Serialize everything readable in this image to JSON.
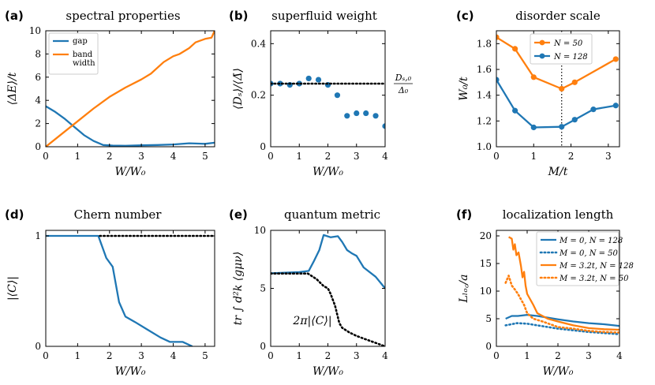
{
  "colors": {
    "blue": "#1f77b4",
    "orange": "#ff7f0e",
    "black": "#000000"
  },
  "chart_data": [
    {
      "type": "line",
      "panel_label": "(a)",
      "title": "spectral properties",
      "xlabel": "W/W₀",
      "ylabel": "⟨ΔE⟩/t",
      "xlim": [
        0,
        5.3
      ],
      "ylim": [
        0,
        10
      ],
      "xticks": [
        0,
        1,
        2,
        3,
        4,
        5
      ],
      "xticklabels": [
        "0",
        "1",
        "2",
        "3",
        "4",
        "5"
      ],
      "yticks": [
        0,
        2,
        4,
        6,
        8,
        10
      ],
      "yticklabels": [
        "0",
        "2",
        "4",
        "6",
        "8",
        "10"
      ],
      "legend": {
        "loc": "upper-left",
        "entries": [
          [
            "gap"
          ],
          [
            "band",
            "width"
          ]
        ]
      },
      "series": [
        {
          "name": "gap",
          "color": "#1f77b4",
          "style": "solid",
          "x": [
            0,
            0.3,
            0.6,
            0.9,
            1.2,
            1.5,
            1.8,
            2.1,
            2.5,
            3,
            3.5,
            4,
            4.5,
            5,
            5.3
          ],
          "y": [
            3.5,
            3.0,
            2.4,
            1.7,
            1.0,
            0.5,
            0.15,
            0.1,
            0.08,
            0.12,
            0.15,
            0.2,
            0.3,
            0.25,
            0.35
          ]
        },
        {
          "name": "band width",
          "color": "#ff7f0e",
          "style": "solid",
          "x": [
            0,
            0.5,
            1,
            1.5,
            2,
            2.5,
            3,
            3.3,
            3.7,
            4,
            4.2,
            4.5,
            4.7,
            5,
            5.2,
            5.3
          ],
          "y": [
            0,
            1.1,
            2.2,
            3.3,
            4.3,
            5.1,
            5.8,
            6.3,
            7.3,
            7.8,
            8.0,
            8.5,
            9.0,
            9.3,
            9.4,
            10
          ]
        }
      ]
    },
    {
      "type": "scatter",
      "panel_label": "(b)",
      "title": "superfluid weight",
      "xlabel": "W/W₀",
      "ylabel": "⟨Dₛ⟩/⟨Δ̄⟩",
      "xlim": [
        0,
        4
      ],
      "ylim": [
        0,
        0.45
      ],
      "xticks": [
        0,
        1,
        2,
        3,
        4
      ],
      "xticklabels": [
        "0",
        "1",
        "2",
        "3",
        "4"
      ],
      "yticks": [
        0,
        0.2,
        0.4
      ],
      "yticklabels": [
        "0",
        "0.2",
        "0.4"
      ],
      "annotation": {
        "text": "Dₛ,₀/Δ₀",
        "numerator": "Dₛ,₀",
        "denominator": "Δ₀"
      },
      "series": [
        {
          "name": "points",
          "color": "#1f77b4",
          "style": "marker",
          "x": [
            0,
            0.33,
            0.67,
            1,
            1.33,
            1.67,
            2,
            2.33,
            2.67,
            3,
            3.33,
            3.67,
            4
          ],
          "y": [
            0.245,
            0.245,
            0.24,
            0.245,
            0.265,
            0.26,
            0.24,
            0.2,
            0.12,
            0.13,
            0.13,
            0.12,
            0.08
          ]
        },
        {
          "name": "reference",
          "color": "#000000",
          "style": "dotted",
          "x": [
            0,
            4
          ],
          "y": [
            0.245,
            0.245
          ]
        }
      ]
    },
    {
      "type": "line",
      "panel_label": "(c)",
      "title": "disorder scale",
      "xlabel": "M/t",
      "ylabel": "W₀/t",
      "xlim": [
        0,
        3.3
      ],
      "ylim": [
        1.0,
        1.9
      ],
      "xticks": [
        0,
        1,
        2,
        3
      ],
      "xticklabels": [
        "0",
        "1",
        "2",
        "3"
      ],
      "yticks": [
        1.0,
        1.2,
        1.4,
        1.6,
        1.8
      ],
      "yticklabels": [
        "1.0",
        "1.2",
        "1.4",
        "1.6",
        "1.8"
      ],
      "vline": {
        "x": 1.75,
        "style": "dotted"
      },
      "legend": {
        "loc": "upper-center",
        "entries": [
          [
            "N = 50"
          ],
          [
            "N = 128"
          ]
        ]
      },
      "series": [
        {
          "name": "N = 50",
          "color": "#ff7f0e",
          "style": "solid-marker",
          "x": [
            0,
            0.5,
            1,
            1.75,
            2.1,
            3.2
          ],
          "y": [
            1.85,
            1.76,
            1.54,
            1.45,
            1.5,
            1.68
          ]
        },
        {
          "name": "N = 128",
          "color": "#1f77b4",
          "style": "solid-marker",
          "x": [
            0,
            0.5,
            1,
            1.75,
            2.1,
            2.6,
            3.2
          ],
          "y": [
            1.52,
            1.28,
            1.15,
            1.155,
            1.21,
            1.29,
            1.32
          ]
        }
      ]
    },
    {
      "type": "line",
      "panel_label": "(d)",
      "title": "Chern number",
      "xlabel": "W/W₀",
      "ylabel": "|⟨C⟩|",
      "xlim": [
        0,
        5.3
      ],
      "ylim": [
        0,
        1.05
      ],
      "xticks": [
        0,
        1,
        2,
        3,
        4,
        5
      ],
      "xticklabels": [
        "0",
        "1",
        "2",
        "3",
        "4",
        "5"
      ],
      "yticks": [
        0,
        1
      ],
      "yticklabels": [
        "0",
        "1"
      ],
      "series": [
        {
          "name": "|<C>|",
          "color": "#1f77b4",
          "style": "solid",
          "x": [
            0,
            1.5,
            1.65,
            1.9,
            2.1,
            2.3,
            2.5,
            2.8,
            3.2,
            3.6,
            3.9,
            4.3,
            4.6
          ],
          "y": [
            1,
            1,
            1,
            0.8,
            0.72,
            0.4,
            0.27,
            0.22,
            0.15,
            0.08,
            0.04,
            0.04,
            0
          ]
        },
        {
          "name": "reference",
          "color": "#000000",
          "style": "dotted",
          "x": [
            1.7,
            5.3
          ],
          "y": [
            1,
            1
          ]
        }
      ]
    },
    {
      "type": "line",
      "panel_label": "(e)",
      "title": "quantum metric",
      "xlabel": "W/W₀",
      "ylabel": "tr ∫ d²k ⟨gμν⟩",
      "xlim": [
        0,
        4
      ],
      "ylim": [
        0,
        10
      ],
      "xticks": [
        0,
        1,
        2,
        3,
        4
      ],
      "xticklabels": [
        "0",
        "1",
        "2",
        "3",
        "4"
      ],
      "yticks": [
        0,
        5,
        10
      ],
      "yticklabels": [
        "0",
        "5",
        "10"
      ],
      "annotation": {
        "text": "2π|⟨C⟩|"
      },
      "series": [
        {
          "name": "trace metric",
          "color": "#1f77b4",
          "style": "solid",
          "x": [
            0,
            1,
            1.33,
            1.5,
            1.7,
            1.85,
            2.1,
            2.35,
            2.5,
            2.67,
            2.85,
            3,
            3.25,
            3.67,
            4
          ],
          "y": [
            6.3,
            6.4,
            6.5,
            7.3,
            8.3,
            9.6,
            9.4,
            9.5,
            9.0,
            8.3,
            8.0,
            7.8,
            6.8,
            6.0,
            5.0
          ]
        },
        {
          "name": "2π|<C>|",
          "color": "#000000",
          "style": "dotted",
          "x": [
            0,
            1.3,
            1.6,
            1.85,
            2,
            2.1,
            2.25,
            2.4,
            2.5,
            2.75,
            3,
            3.33,
            3.67,
            4
          ],
          "y": [
            6.28,
            6.28,
            5.8,
            5.2,
            5.0,
            4.5,
            3.5,
            2.0,
            1.6,
            1.2,
            0.9,
            0.6,
            0.3,
            0
          ]
        }
      ]
    },
    {
      "type": "line",
      "panel_label": "(f)",
      "title": "localization length",
      "xlabel": "W/W₀",
      "ylabel": "Lₗₒ꜀/a",
      "ylabel_text": "L_loc/a",
      "xlim": [
        0,
        4
      ],
      "ylim": [
        0,
        21
      ],
      "xticks": [
        0,
        1,
        2,
        3,
        4
      ],
      "xticklabels": [
        "0",
        "1",
        "2",
        "3",
        "4"
      ],
      "yticks": [
        0,
        5,
        10,
        15,
        20
      ],
      "yticklabels": [
        "0",
        "5",
        "10",
        "15",
        "20"
      ],
      "legend": {
        "loc": "upper-right",
        "entries": [
          [
            "M = 0, N = 128"
          ],
          [
            "M = 0, N = 50"
          ],
          [
            "M = 3.2t, N = 128"
          ],
          [
            "M = 3.2t, N = 50"
          ]
        ]
      },
      "series": [
        {
          "name": "M = 0, N = 128",
          "color": "#1f77b4",
          "style": "solid",
          "x": [
            0.3,
            0.5,
            0.7,
            1,
            1.33,
            1.67,
            2,
            2.5,
            3,
            3.5,
            4
          ],
          "y": [
            5.0,
            5.5,
            5.5,
            5.7,
            5.5,
            5.2,
            4.9,
            4.5,
            4.2,
            4.0,
            3.7
          ]
        },
        {
          "name": "M = 0, N = 50",
          "color": "#1f77b4",
          "style": "dotted",
          "x": [
            0.3,
            0.67,
            1,
            1.33,
            1.67,
            2,
            2.5,
            3,
            3.5,
            4
          ],
          "y": [
            3.8,
            4.2,
            4.1,
            3.8,
            3.5,
            3.2,
            2.9,
            2.6,
            2.4,
            2.2
          ]
        },
        {
          "name": "M = 3.2t, N = 128",
          "color": "#ff7f0e",
          "style": "solid",
          "x": [
            0.4,
            0.5,
            0.55,
            0.6,
            0.65,
            0.72,
            0.8,
            0.85,
            0.9,
            0.95,
            1,
            1.1,
            1.2,
            1.33,
            1.5,
            1.67,
            2,
            2.5,
            3,
            3.5,
            4
          ],
          "y": [
            19.8,
            19.5,
            17.5,
            18.5,
            16.5,
            17.0,
            14.5,
            12.5,
            13.5,
            11.0,
            9.5,
            8.5,
            7.5,
            6.0,
            5.5,
            5.0,
            4.5,
            3.8,
            3.3,
            3.1,
            3.0
          ]
        },
        {
          "name": "M = 3.2t, N = 50",
          "color": "#ff7f0e",
          "style": "dotted",
          "x": [
            0.3,
            0.4,
            0.5,
            0.6,
            0.7,
            0.8,
            0.9,
            1,
            1.2,
            1.5,
            2,
            2.5,
            3,
            3.5,
            4
          ],
          "y": [
            11.5,
            12.8,
            11.0,
            10.3,
            9.5,
            8.5,
            7.5,
            6.0,
            5.0,
            4.5,
            3.5,
            3.2,
            2.8,
            2.6,
            2.5
          ]
        }
      ]
    }
  ]
}
